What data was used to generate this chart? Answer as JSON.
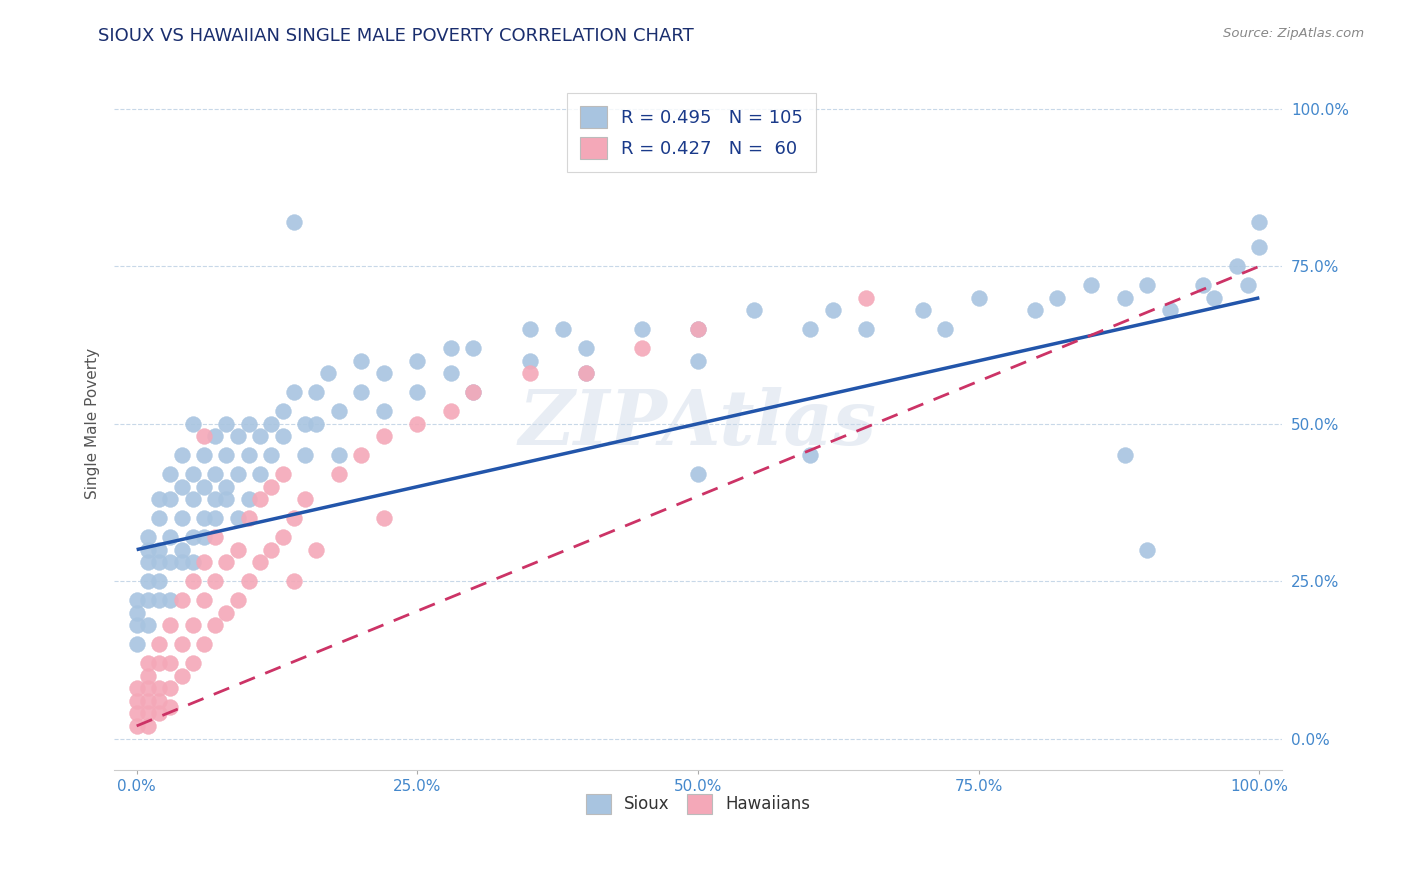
{
  "title": "SIOUX VS HAWAIIAN SINGLE MALE POVERTY CORRELATION CHART",
  "source": "Source: ZipAtlas.com",
  "ylabel": "Single Male Poverty",
  "xlim": [
    -0.02,
    1.02
  ],
  "ylim": [
    -0.05,
    1.05
  ],
  "xticks": [
    0.0,
    0.25,
    0.5,
    0.75,
    1.0
  ],
  "xtick_labels": [
    "0.0%",
    "25.0%",
    "50.0%",
    "75.0%",
    "100.0%"
  ],
  "yticks": [
    0.0,
    0.25,
    0.5,
    0.75,
    1.0
  ],
  "ytick_labels": [
    "0.0%",
    "25.0%",
    "50.0%",
    "75.0%",
    "100.0%"
  ],
  "sioux_color": "#a8c4e0",
  "hawaiian_color": "#f4a8b8",
  "sioux_R": 0.495,
  "sioux_N": 105,
  "hawaiian_R": 0.427,
  "hawaiian_N": 60,
  "legend_R_color": "#1a3a8a",
  "title_color": "#1a2e6e",
  "watermark": "ZIPAtlas",
  "background_color": "#ffffff",
  "sioux_line_color": "#2255aa",
  "sioux_line_dash": false,
  "hawaiian_line_color": "#cc3366",
  "hawaiian_line_dash": true,
  "grid_color": "#c8d8e8",
  "tick_color": "#4488cc",
  "sioux_points": [
    [
      0.0,
      0.22
    ],
    [
      0.0,
      0.18
    ],
    [
      0.0,
      0.15
    ],
    [
      0.0,
      0.2
    ],
    [
      0.01,
      0.22
    ],
    [
      0.01,
      0.28
    ],
    [
      0.01,
      0.25
    ],
    [
      0.01,
      0.18
    ],
    [
      0.01,
      0.3
    ],
    [
      0.01,
      0.32
    ],
    [
      0.02,
      0.22
    ],
    [
      0.02,
      0.28
    ],
    [
      0.02,
      0.35
    ],
    [
      0.02,
      0.3
    ],
    [
      0.02,
      0.25
    ],
    [
      0.02,
      0.38
    ],
    [
      0.03,
      0.28
    ],
    [
      0.03,
      0.32
    ],
    [
      0.03,
      0.38
    ],
    [
      0.03,
      0.22
    ],
    [
      0.03,
      0.42
    ],
    [
      0.04,
      0.3
    ],
    [
      0.04,
      0.35
    ],
    [
      0.04,
      0.4
    ],
    [
      0.04,
      0.28
    ],
    [
      0.04,
      0.45
    ],
    [
      0.05,
      0.32
    ],
    [
      0.05,
      0.38
    ],
    [
      0.05,
      0.42
    ],
    [
      0.05,
      0.28
    ],
    [
      0.05,
      0.5
    ],
    [
      0.06,
      0.35
    ],
    [
      0.06,
      0.4
    ],
    [
      0.06,
      0.45
    ],
    [
      0.06,
      0.32
    ],
    [
      0.07,
      0.38
    ],
    [
      0.07,
      0.42
    ],
    [
      0.07,
      0.48
    ],
    [
      0.07,
      0.35
    ],
    [
      0.08,
      0.4
    ],
    [
      0.08,
      0.45
    ],
    [
      0.08,
      0.5
    ],
    [
      0.08,
      0.38
    ],
    [
      0.09,
      0.42
    ],
    [
      0.09,
      0.48
    ],
    [
      0.09,
      0.35
    ],
    [
      0.1,
      0.45
    ],
    [
      0.1,
      0.5
    ],
    [
      0.1,
      0.38
    ],
    [
      0.11,
      0.48
    ],
    [
      0.11,
      0.42
    ],
    [
      0.12,
      0.5
    ],
    [
      0.12,
      0.45
    ],
    [
      0.13,
      0.52
    ],
    [
      0.13,
      0.48
    ],
    [
      0.14,
      0.55
    ],
    [
      0.15,
      0.5
    ],
    [
      0.15,
      0.45
    ],
    [
      0.16,
      0.55
    ],
    [
      0.16,
      0.5
    ],
    [
      0.17,
      0.58
    ],
    [
      0.18,
      0.52
    ],
    [
      0.18,
      0.45
    ],
    [
      0.2,
      0.55
    ],
    [
      0.2,
      0.6
    ],
    [
      0.22,
      0.58
    ],
    [
      0.22,
      0.52
    ],
    [
      0.25,
      0.6
    ],
    [
      0.25,
      0.55
    ],
    [
      0.28,
      0.62
    ],
    [
      0.28,
      0.58
    ],
    [
      0.3,
      0.62
    ],
    [
      0.3,
      0.55
    ],
    [
      0.35,
      0.65
    ],
    [
      0.35,
      0.6
    ],
    [
      0.38,
      0.65
    ],
    [
      0.4,
      0.62
    ],
    [
      0.4,
      0.58
    ],
    [
      0.45,
      0.65
    ],
    [
      0.5,
      0.65
    ],
    [
      0.5,
      0.6
    ],
    [
      0.55,
      0.68
    ],
    [
      0.6,
      0.65
    ],
    [
      0.62,
      0.68
    ],
    [
      0.65,
      0.65
    ],
    [
      0.7,
      0.68
    ],
    [
      0.72,
      0.65
    ],
    [
      0.75,
      0.7
    ],
    [
      0.8,
      0.68
    ],
    [
      0.82,
      0.7
    ],
    [
      0.85,
      0.72
    ],
    [
      0.88,
      0.7
    ],
    [
      0.9,
      0.72
    ],
    [
      0.92,
      0.68
    ],
    [
      0.95,
      0.72
    ],
    [
      0.96,
      0.7
    ],
    [
      0.98,
      0.75
    ],
    [
      0.99,
      0.72
    ],
    [
      1.0,
      0.78
    ],
    [
      1.0,
      0.82
    ],
    [
      0.88,
      0.45
    ],
    [
      0.14,
      0.82
    ],
    [
      0.9,
      0.3
    ],
    [
      0.6,
      0.45
    ],
    [
      0.5,
      0.42
    ]
  ],
  "hawaiian_points": [
    [
      0.0,
      0.02
    ],
    [
      0.0,
      0.04
    ],
    [
      0.0,
      0.06
    ],
    [
      0.0,
      0.08
    ],
    [
      0.01,
      0.02
    ],
    [
      0.01,
      0.04
    ],
    [
      0.01,
      0.06
    ],
    [
      0.01,
      0.08
    ],
    [
      0.01,
      0.1
    ],
    [
      0.01,
      0.12
    ],
    [
      0.02,
      0.04
    ],
    [
      0.02,
      0.08
    ],
    [
      0.02,
      0.12
    ],
    [
      0.02,
      0.15
    ],
    [
      0.02,
      0.06
    ],
    [
      0.03,
      0.08
    ],
    [
      0.03,
      0.12
    ],
    [
      0.03,
      0.18
    ],
    [
      0.03,
      0.05
    ],
    [
      0.04,
      0.1
    ],
    [
      0.04,
      0.15
    ],
    [
      0.04,
      0.22
    ],
    [
      0.05,
      0.12
    ],
    [
      0.05,
      0.18
    ],
    [
      0.05,
      0.25
    ],
    [
      0.06,
      0.15
    ],
    [
      0.06,
      0.22
    ],
    [
      0.06,
      0.28
    ],
    [
      0.06,
      0.48
    ],
    [
      0.07,
      0.18
    ],
    [
      0.07,
      0.25
    ],
    [
      0.07,
      0.32
    ],
    [
      0.08,
      0.2
    ],
    [
      0.08,
      0.28
    ],
    [
      0.09,
      0.22
    ],
    [
      0.09,
      0.3
    ],
    [
      0.1,
      0.25
    ],
    [
      0.1,
      0.35
    ],
    [
      0.11,
      0.28
    ],
    [
      0.11,
      0.38
    ],
    [
      0.12,
      0.3
    ],
    [
      0.12,
      0.4
    ],
    [
      0.13,
      0.32
    ],
    [
      0.13,
      0.42
    ],
    [
      0.14,
      0.35
    ],
    [
      0.14,
      0.25
    ],
    [
      0.15,
      0.38
    ],
    [
      0.16,
      0.3
    ],
    [
      0.18,
      0.42
    ],
    [
      0.2,
      0.45
    ],
    [
      0.22,
      0.48
    ],
    [
      0.22,
      0.35
    ],
    [
      0.25,
      0.5
    ],
    [
      0.28,
      0.52
    ],
    [
      0.3,
      0.55
    ],
    [
      0.35,
      0.58
    ],
    [
      0.4,
      0.58
    ],
    [
      0.45,
      0.62
    ],
    [
      0.5,
      0.65
    ],
    [
      0.65,
      0.7
    ]
  ]
}
